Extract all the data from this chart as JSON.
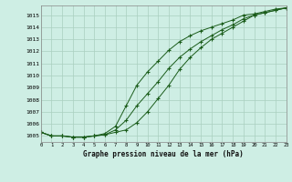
{
  "title": "Graphe pression niveau de la mer (hPa)",
  "bg_color": "#ceeee4",
  "grid_color": "#aacfbf",
  "line_color": "#1a5c1a",
  "xlim": [
    0,
    23
  ],
  "ylim": [
    1004.5,
    1015.8
  ],
  "xticks": [
    0,
    1,
    2,
    3,
    4,
    5,
    6,
    7,
    8,
    9,
    10,
    11,
    12,
    13,
    14,
    15,
    16,
    17,
    18,
    19,
    20,
    21,
    22,
    23
  ],
  "yticks": [
    1005,
    1006,
    1007,
    1008,
    1009,
    1010,
    1011,
    1012,
    1013,
    1014,
    1015
  ],
  "series1_x": [
    0,
    1,
    2,
    3,
    4,
    5,
    6,
    7,
    8,
    9,
    10,
    11,
    12,
    13,
    14,
    15,
    16,
    17,
    18,
    19,
    20,
    21,
    22,
    23
  ],
  "series1_y": [
    1005.3,
    1005.0,
    1005.0,
    1004.9,
    1004.9,
    1005.0,
    1005.1,
    1005.3,
    1005.5,
    1006.1,
    1007.0,
    1008.1,
    1009.2,
    1010.5,
    1011.5,
    1012.3,
    1013.0,
    1013.5,
    1014.0,
    1014.5,
    1015.0,
    1015.2,
    1015.4,
    1015.6
  ],
  "series2_x": [
    0,
    1,
    2,
    3,
    4,
    5,
    6,
    7,
    8,
    9,
    10,
    11,
    12,
    13,
    14,
    15,
    16,
    17,
    18,
    19,
    20,
    21,
    22,
    23
  ],
  "series2_y": [
    1005.3,
    1005.0,
    1005.0,
    1004.9,
    1004.9,
    1005.0,
    1005.1,
    1005.5,
    1006.3,
    1007.5,
    1008.5,
    1009.5,
    1010.6,
    1011.5,
    1012.2,
    1012.8,
    1013.3,
    1013.8,
    1014.2,
    1014.7,
    1015.0,
    1015.2,
    1015.4,
    1015.6
  ],
  "series3_x": [
    0,
    1,
    2,
    3,
    4,
    5,
    6,
    7,
    8,
    9,
    10,
    11,
    12,
    13,
    14,
    15,
    16,
    17,
    18,
    19,
    20,
    21,
    22,
    23
  ],
  "series3_y": [
    1005.3,
    1005.0,
    1005.0,
    1004.9,
    1004.9,
    1005.0,
    1005.2,
    1005.8,
    1007.5,
    1009.2,
    1010.3,
    1011.2,
    1012.1,
    1012.8,
    1013.3,
    1013.7,
    1014.0,
    1014.3,
    1014.6,
    1015.0,
    1015.1,
    1015.3,
    1015.5,
    1015.6
  ]
}
